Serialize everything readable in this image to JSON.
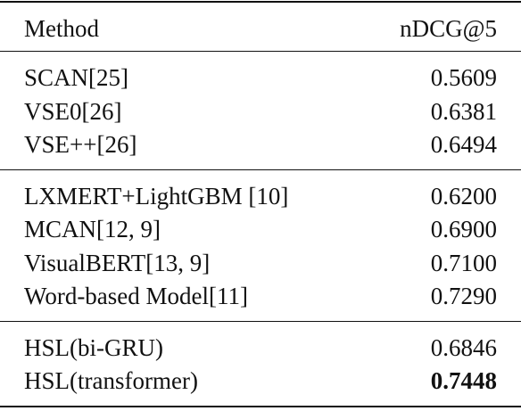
{
  "table": {
    "header": [
      "Method",
      "nDCG@5"
    ],
    "groups": [
      {
        "rows": [
          [
            "SCAN[25]",
            "0.5609"
          ],
          [
            "VSE0[26]",
            "0.6381"
          ],
          [
            "VSE++[26]",
            "0.6494"
          ]
        ]
      },
      {
        "rows": [
          [
            "LXMERT+LightGBM [10]",
            "0.6200"
          ],
          [
            "MCAN[12, 9]",
            "0.6900"
          ],
          [
            "VisualBERT[13, 9]",
            "0.7100"
          ],
          [
            "Word-based Model[11]",
            "0.7290"
          ]
        ]
      },
      {
        "rows": [
          [
            "HSL(bi-GRU)",
            "0.6846"
          ],
          [
            "HSL(transformer)",
            "0.7448"
          ]
        ]
      }
    ],
    "bold_cell": {
      "group": 2,
      "row": 1,
      "col": 1
    }
  }
}
